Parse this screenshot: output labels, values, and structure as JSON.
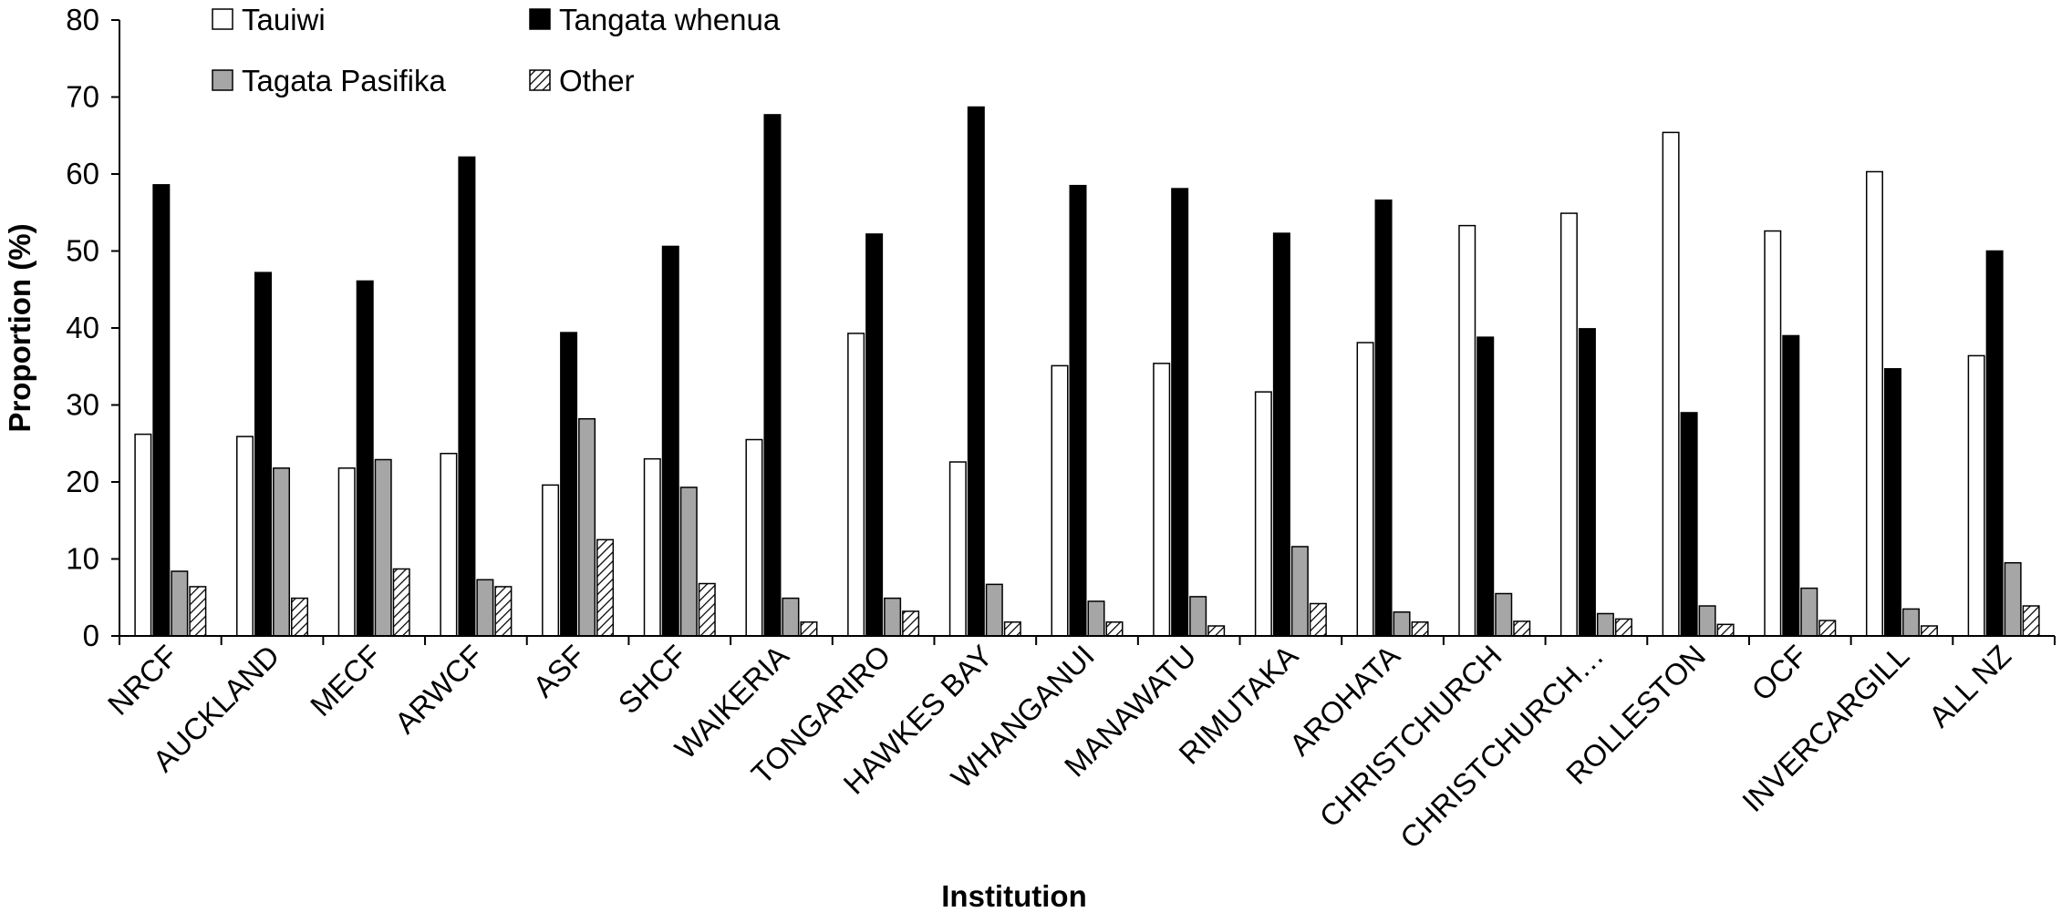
{
  "chart_data": {
    "type": "bar",
    "title": "",
    "xlabel": "Institution",
    "ylabel": "Proportion (%)",
    "ylim": [
      0,
      80
    ],
    "yticks": [
      0,
      10,
      20,
      30,
      40,
      50,
      60,
      70,
      80
    ],
    "grid": false,
    "legend_position": "top-left",
    "categories": [
      "NRCF",
      "AUCKLAND",
      "MECF",
      "ARWCF",
      "ASF",
      "SHCF",
      "WAIKERIA",
      "TONGARIRO",
      "HAWKES BAY",
      "WHANGANUI",
      "MANAWATU",
      "RIMUTAKA",
      "AROHATA",
      "CHRISTCHURCH",
      "CHRISTCHURCH…",
      "ROLLESTON",
      "OCF",
      "INVERCARGILL",
      "ALL NZ"
    ],
    "series": [
      {
        "name": "Tauiwi",
        "fill": "#ffffff",
        "pattern": "solid",
        "values": [
          26.2,
          25.9,
          21.8,
          23.7,
          19.6,
          23.0,
          25.5,
          39.3,
          22.6,
          35.1,
          35.4,
          31.7,
          38.1,
          53.3,
          54.9,
          65.4,
          52.6,
          60.3,
          36.4
        ]
      },
      {
        "name": "Tangata whenua",
        "fill": "#000000",
        "pattern": "solid",
        "values": [
          58.6,
          47.2,
          46.1,
          62.2,
          39.4,
          50.6,
          67.7,
          52.2,
          68.7,
          58.5,
          58.1,
          52.3,
          56.6,
          38.8,
          39.9,
          29.0,
          39.0,
          34.7,
          50.0
        ]
      },
      {
        "name": "Tagata Pasifika",
        "fill": "#a6a6a6",
        "pattern": "solid",
        "values": [
          8.4,
          21.8,
          22.9,
          7.3,
          28.2,
          19.3,
          4.9,
          4.9,
          6.7,
          4.5,
          5.1,
          11.6,
          3.1,
          5.5,
          2.9,
          3.9,
          6.2,
          3.5,
          9.5
        ]
      },
      {
        "name": "Other",
        "fill": "#ffffff",
        "pattern": "hatch",
        "values": [
          6.4,
          4.9,
          8.7,
          6.4,
          12.5,
          6.8,
          1.8,
          3.2,
          1.8,
          1.8,
          1.3,
          4.2,
          1.8,
          1.9,
          2.2,
          1.5,
          2.0,
          1.3,
          3.9
        ]
      }
    ]
  }
}
